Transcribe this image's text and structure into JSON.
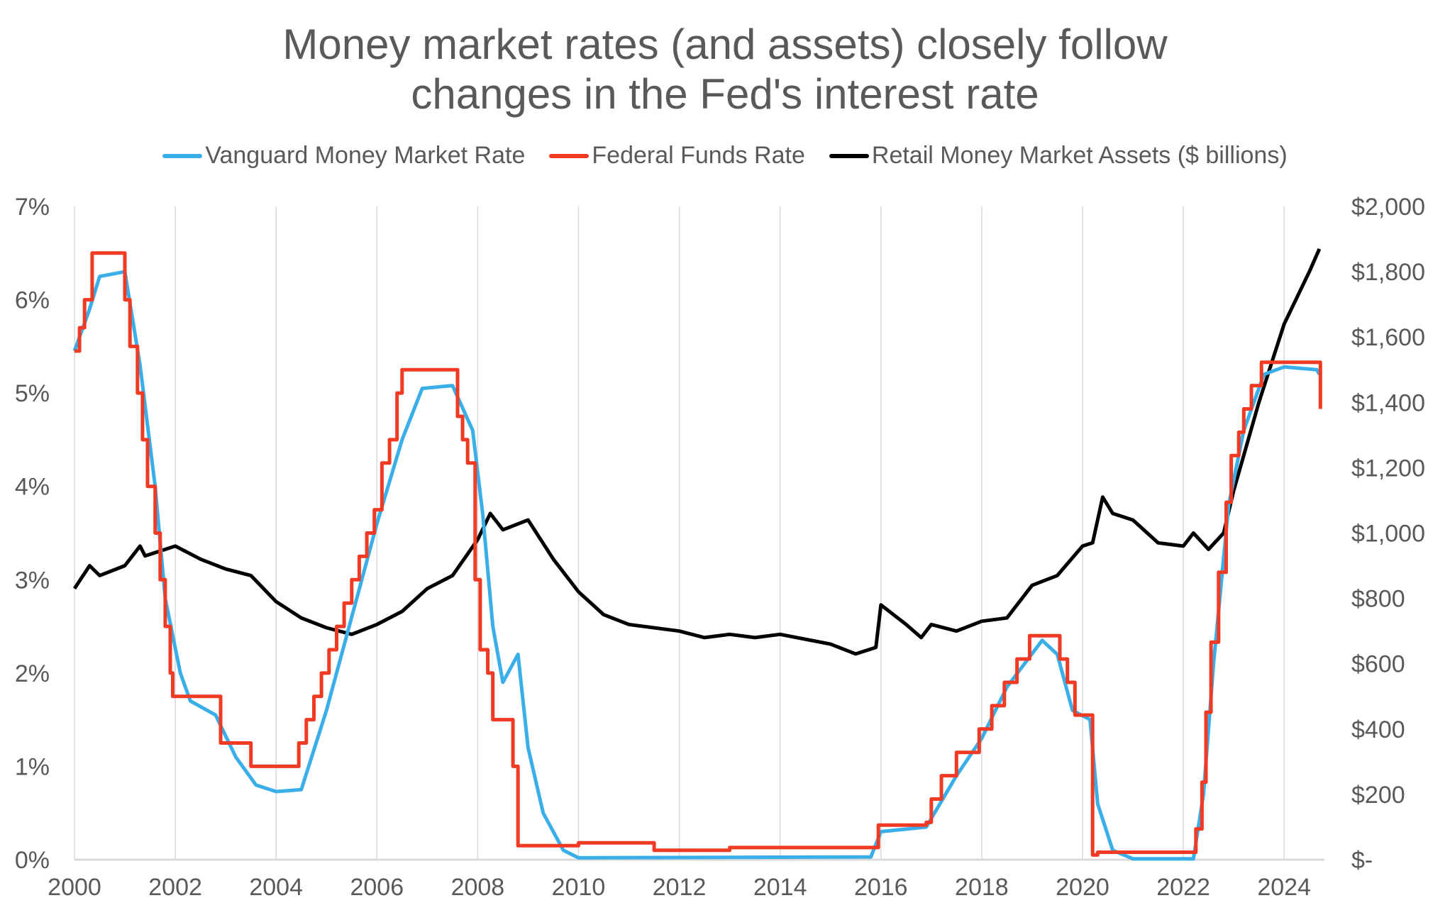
{
  "chart_data": {
    "type": "line",
    "title": "Money market rates (and assets) closely follow changes in the Fed's interest rate",
    "title_lines": [
      "Money market rates (and assets) closely follow",
      "changes in the Fed's interest rate"
    ],
    "xlim": [
      2000,
      2024.8
    ],
    "x_ticks": [
      "2000",
      "2002",
      "2004",
      "2006",
      "2008",
      "2010",
      "2012",
      "2014",
      "2016",
      "2018",
      "2020",
      "2022",
      "2024"
    ],
    "y_left": {
      "lim": [
        0,
        7
      ],
      "ticks": [
        "0%",
        "1%",
        "2%",
        "3%",
        "4%",
        "5%",
        "6%",
        "7%"
      ]
    },
    "y_right": {
      "lim": [
        0,
        2000
      ],
      "ticks": [
        "$-",
        "$200",
        "$400",
        "$600",
        "$800",
        "$1,000",
        "$1,200",
        "$1,400",
        "$1,600",
        "$1,800",
        "$2,000"
      ]
    },
    "grid": "vertical",
    "legend_position": "top",
    "series": [
      {
        "name": "Vanguard Money Market Rate",
        "axis": "left",
        "color": "#3AAEE8",
        "step": false,
        "x": [
          2000,
          2000.3,
          2000.5,
          2001,
          2001.3,
          2001.6,
          2001.8,
          2002.1,
          2002.3,
          2002.8,
          2003.2,
          2003.6,
          2004,
          2004.5,
          2005,
          2005.5,
          2006,
          2006.5,
          2006.9,
          2007.5,
          2007.9,
          2008.1,
          2008.3,
          2008.5,
          2008.8,
          2009,
          2009.3,
          2009.7,
          2010,
          2015.8,
          2016,
          2016.9,
          2017.5,
          2018,
          2018.5,
          2019.2,
          2019.5,
          2019.8,
          2020.15,
          2020.3,
          2020.6,
          2021,
          2022.2,
          2022.4,
          2022.6,
          2022.9,
          2023.2,
          2023.6,
          2024,
          2024.65,
          2024.7
        ],
        "y": [
          5.45,
          5.9,
          6.25,
          6.3,
          5.3,
          4.0,
          2.8,
          2.0,
          1.7,
          1.55,
          1.1,
          0.8,
          0.73,
          0.75,
          1.6,
          2.6,
          3.6,
          4.5,
          5.05,
          5.08,
          4.6,
          3.7,
          2.5,
          1.9,
          2.2,
          1.2,
          0.5,
          0.1,
          0.02,
          0.03,
          0.3,
          0.35,
          0.9,
          1.3,
          1.85,
          2.35,
          2.2,
          1.6,
          1.5,
          0.6,
          0.1,
          0.01,
          0.01,
          0.7,
          2.1,
          3.8,
          4.6,
          5.2,
          5.28,
          5.25,
          5.2
        ]
      },
      {
        "name": "Federal Funds Rate",
        "axis": "left",
        "color": "#F03A23",
        "step": true,
        "x": [
          2000,
          2000.1,
          2000.2,
          2000.35,
          2001.0,
          2001.1,
          2001.25,
          2001.35,
          2001.45,
          2001.6,
          2001.7,
          2001.8,
          2001.9,
          2001.95,
          2002.9,
          2003.5,
          2004.45,
          2004.6,
          2004.75,
          2004.9,
          2005.05,
          2005.2,
          2005.35,
          2005.5,
          2005.65,
          2005.8,
          2005.95,
          2006.1,
          2006.25,
          2006.4,
          2006.5,
          2007.6,
          2007.7,
          2007.8,
          2007.95,
          2008.05,
          2008.2,
          2008.3,
          2008.7,
          2008.8,
          2008.9,
          2010,
          2011.5,
          2013,
          2015.95,
          2016.9,
          2017.0,
          2017.2,
          2017.5,
          2017.95,
          2018.2,
          2018.45,
          2018.7,
          2018.95,
          2019.55,
          2019.7,
          2019.85,
          2020.2,
          2020.3,
          2022.2,
          2022.25,
          2022.37,
          2022.45,
          2022.55,
          2022.7,
          2022.85,
          2022.95,
          2023.1,
          2023.2,
          2023.35,
          2023.55,
          2024.7,
          2024.72
        ],
        "y": [
          5.45,
          5.7,
          6.0,
          6.5,
          6.0,
          5.5,
          5.0,
          4.5,
          4.0,
          3.5,
          3.0,
          2.5,
          2.0,
          1.75,
          1.25,
          1.0,
          1.25,
          1.5,
          1.75,
          2.0,
          2.25,
          2.5,
          2.75,
          3.0,
          3.25,
          3.5,
          3.75,
          4.25,
          4.5,
          5.0,
          5.25,
          4.75,
          4.5,
          4.25,
          3.0,
          2.25,
          2.0,
          1.5,
          1.0,
          0.15,
          0.15,
          0.18,
          0.1,
          0.13,
          0.37,
          0.4,
          0.65,
          0.9,
          1.15,
          1.4,
          1.65,
          1.9,
          2.15,
          2.4,
          2.15,
          1.9,
          1.55,
          0.05,
          0.08,
          0.08,
          0.33,
          0.83,
          1.58,
          2.33,
          3.08,
          3.83,
          4.33,
          4.58,
          4.83,
          5.08,
          5.33,
          5.33,
          4.83
        ]
      },
      {
        "name": "Retail Money Market Assets ($ billions)",
        "axis": "right",
        "color": "#000000",
        "step": false,
        "x": [
          2000,
          2000.3,
          2000.5,
          2001,
          2001.3,
          2001.4,
          2002,
          2002.5,
          2003,
          2003.5,
          2004,
          2004.5,
          2005,
          2005.5,
          2006,
          2006.5,
          2007,
          2007.5,
          2008,
          2008.25,
          2008.5,
          2009,
          2009.5,
          2010,
          2010.5,
          2011,
          2012,
          2012.5,
          2013,
          2013.5,
          2014,
          2015,
          2015.5,
          2015.9,
          2016,
          2016.5,
          2016.8,
          2017,
          2017.5,
          2018,
          2018.5,
          2019,
          2019.5,
          2020,
          2020.2,
          2020.4,
          2020.6,
          2021,
          2021.5,
          2022,
          2022.2,
          2022.5,
          2022.8,
          2023,
          2023.5,
          2024,
          2024.5,
          2024.7
        ],
        "y": [
          830,
          900,
          870,
          900,
          960,
          930,
          960,
          920,
          890,
          870,
          790,
          740,
          710,
          690,
          720,
          760,
          830,
          870,
          980,
          1060,
          1010,
          1040,
          920,
          820,
          750,
          720,
          700,
          680,
          690,
          680,
          690,
          660,
          630,
          650,
          780,
          720,
          680,
          720,
          700,
          730,
          740,
          840,
          870,
          960,
          970,
          1110,
          1060,
          1040,
          970,
          960,
          1000,
          950,
          1000,
          1130,
          1400,
          1640,
          1800,
          1870
        ]
      }
    ]
  }
}
